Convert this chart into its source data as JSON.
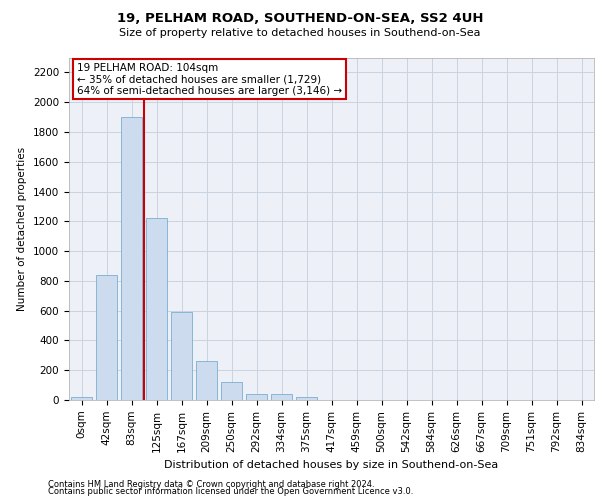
{
  "title1": "19, PELHAM ROAD, SOUTHEND-ON-SEA, SS2 4UH",
  "title2": "Size of property relative to detached houses in Southend-on-Sea",
  "xlabel": "Distribution of detached houses by size in Southend-on-Sea",
  "ylabel": "Number of detached properties",
  "footnote1": "Contains HM Land Registry data © Crown copyright and database right 2024.",
  "footnote2": "Contains public sector information licensed under the Open Government Licence v3.0.",
  "annotation_title": "19 PELHAM ROAD: 104sqm",
  "annotation_line1": "← 35% of detached houses are smaller (1,729)",
  "annotation_line2": "64% of semi-detached houses are larger (3,146) →",
  "bar_color": "#ccdcee",
  "bar_edge_color": "#7aaed0",
  "vline_color": "#cc0000",
  "annotation_box_color": "#ffffff",
  "annotation_box_edge": "#cc0000",
  "categories": [
    "0sqm",
    "42sqm",
    "83sqm",
    "125sqm",
    "167sqm",
    "209sqm",
    "250sqm",
    "292sqm",
    "334sqm",
    "375sqm",
    "417sqm",
    "459sqm",
    "500sqm",
    "542sqm",
    "584sqm",
    "626sqm",
    "667sqm",
    "709sqm",
    "751sqm",
    "792sqm",
    "834sqm"
  ],
  "values": [
    20,
    840,
    1900,
    1220,
    590,
    260,
    120,
    40,
    38,
    22,
    0,
    0,
    0,
    0,
    0,
    0,
    0,
    0,
    0,
    0,
    0
  ],
  "vline_x": 2.48,
  "ylim": [
    0,
    2300
  ],
  "yticks": [
    0,
    200,
    400,
    600,
    800,
    1000,
    1200,
    1400,
    1600,
    1800,
    2000,
    2200
  ],
  "grid_color": "#c8d4e0",
  "bg_color": "#edf1f7",
  "title1_fontsize": 9.5,
  "title2_fontsize": 8.0,
  "xlabel_fontsize": 8.0,
  "ylabel_fontsize": 7.5,
  "tick_fontsize": 7.5,
  "annotation_fontsize": 7.5,
  "footnote_fontsize": 6.0
}
